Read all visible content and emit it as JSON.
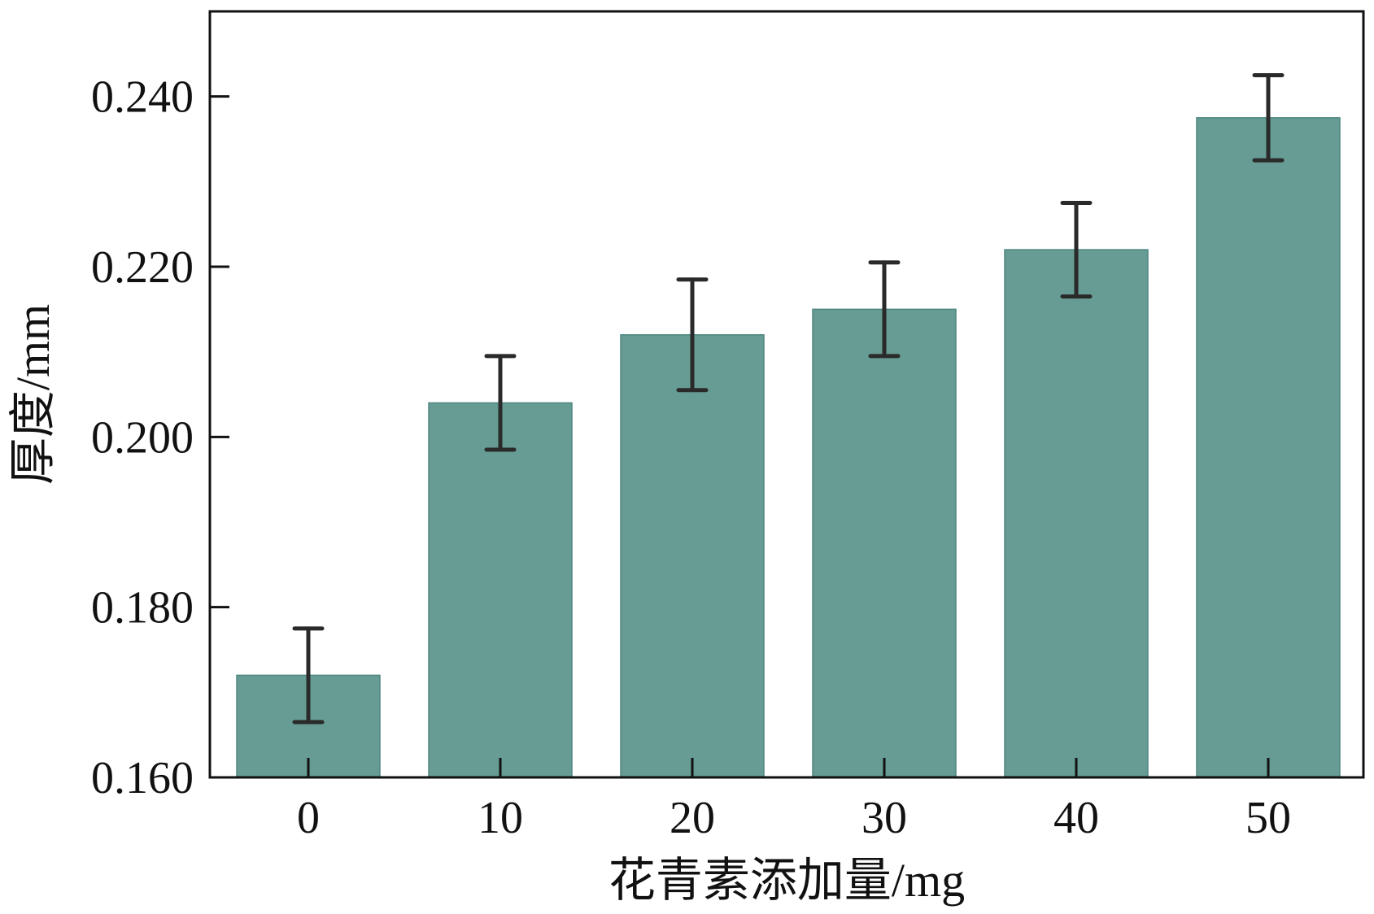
{
  "chart_data": {
    "type": "bar",
    "categories": [
      "0",
      "10",
      "20",
      "30",
      "40",
      "50"
    ],
    "values": [
      0.172,
      0.204,
      0.212,
      0.215,
      0.222,
      0.2375
    ],
    "errors": [
      0.0055,
      0.0055,
      0.0065,
      0.0055,
      0.0055,
      0.005
    ],
    "xlabel": "花青素添加量/mg",
    "ylabel": "厚度/mm",
    "ylim": [
      0.16,
      0.25
    ],
    "yticks": [
      "0.160",
      "0.180",
      "0.200",
      "0.220",
      "0.240"
    ],
    "ytick_values": [
      0.16,
      0.18,
      0.2,
      0.22,
      0.24
    ],
    "bar_color": "#669c94",
    "error_color": "#2a2a2a",
    "grid": false,
    "legend": "none"
  }
}
